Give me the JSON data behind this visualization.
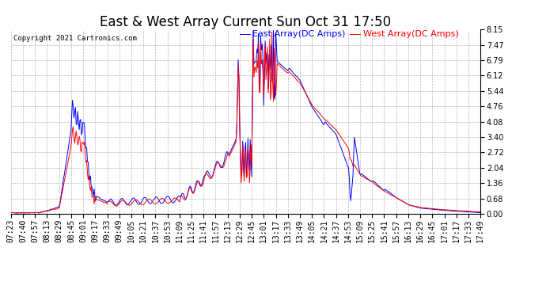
{
  "title": "East & West Array Current Sun Oct 31 17:50",
  "copyright": "Copyright 2021 Cartronics.com",
  "legend_east": "East Array(DC Amps)",
  "legend_west": "West Array(DC Amps)",
  "east_color": "blue",
  "west_color": "red",
  "ylim": [
    0.0,
    8.15
  ],
  "yticks": [
    0.0,
    0.68,
    1.36,
    2.04,
    2.72,
    3.4,
    4.08,
    4.76,
    5.44,
    6.12,
    6.79,
    7.47,
    8.15
  ],
  "xtick_labels": [
    "07:23",
    "07:40",
    "07:57",
    "08:13",
    "08:29",
    "08:45",
    "09:01",
    "09:17",
    "09:33",
    "09:49",
    "10:05",
    "10:21",
    "10:37",
    "10:53",
    "11:09",
    "11:25",
    "11:41",
    "11:57",
    "12:13",
    "12:29",
    "12:45",
    "13:01",
    "13:17",
    "13:33",
    "13:49",
    "14:05",
    "14:21",
    "14:37",
    "14:53",
    "15:09",
    "15:25",
    "15:41",
    "15:57",
    "16:13",
    "16:29",
    "16:45",
    "17:01",
    "17:17",
    "17:33",
    "17:49"
  ],
  "background_color": "#ffffff",
  "grid_color": "#b0b0b0",
  "title_fontsize": 12,
  "tick_fontsize": 7,
  "legend_fontsize": 8
}
